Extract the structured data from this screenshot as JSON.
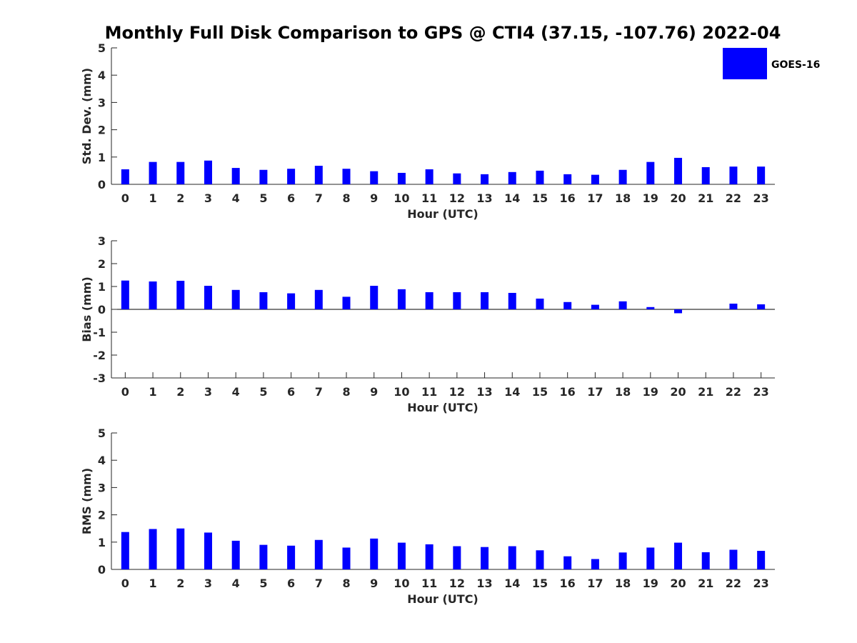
{
  "title": "Monthly Full Disk Comparison to GPS @ CTI4 (37.15, -107.76) 2022-04",
  "colors": {
    "series": "#0000ff",
    "axis": "#262626"
  },
  "legend": {
    "label": "GOES-16",
    "placement": "top-right"
  },
  "chart_data": [
    {
      "type": "bar",
      "panel": "std",
      "xlabel": "Hour (UTC)",
      "ylabel": "Std. Dev. (mm)",
      "ylim": [
        0,
        5
      ],
      "yticks": [
        0,
        1,
        2,
        3,
        4,
        5
      ],
      "categories": [
        "0",
        "1",
        "2",
        "3",
        "4",
        "5",
        "6",
        "7",
        "8",
        "9",
        "10",
        "11",
        "12",
        "13",
        "14",
        "15",
        "16",
        "17",
        "18",
        "19",
        "20",
        "21",
        "22",
        "23"
      ],
      "series": [
        {
          "name": "GOES-16",
          "values": [
            0.55,
            0.82,
            0.82,
            0.87,
            0.6,
            0.53,
            0.57,
            0.68,
            0.57,
            0.48,
            0.42,
            0.55,
            0.4,
            0.37,
            0.45,
            0.5,
            0.37,
            0.35,
            0.53,
            0.82,
            0.97,
            0.63,
            0.65,
            0.65
          ]
        }
      ]
    },
    {
      "type": "bar",
      "panel": "bias",
      "xlabel": "Hour (UTC)",
      "ylabel": "Bias (mm)",
      "ylim": [
        -3,
        3
      ],
      "yticks": [
        -3,
        -2,
        -1,
        0,
        1,
        2,
        3
      ],
      "categories": [
        "0",
        "1",
        "2",
        "3",
        "4",
        "5",
        "6",
        "7",
        "8",
        "9",
        "10",
        "11",
        "12",
        "13",
        "14",
        "15",
        "16",
        "17",
        "18",
        "19",
        "20",
        "21",
        "22",
        "23"
      ],
      "series": [
        {
          "name": "GOES-16",
          "values": [
            1.26,
            1.22,
            1.25,
            1.03,
            0.85,
            0.75,
            0.7,
            0.85,
            0.55,
            1.03,
            0.88,
            0.75,
            0.75,
            0.75,
            0.72,
            0.47,
            0.32,
            0.2,
            0.35,
            0.1,
            -0.17,
            0.0,
            0.25,
            0.22
          ]
        }
      ]
    },
    {
      "type": "bar",
      "panel": "rms",
      "xlabel": "Hour (UTC)",
      "ylabel": "RMS (mm)",
      "ylim": [
        0,
        5
      ],
      "yticks": [
        0,
        1,
        2,
        3,
        4,
        5
      ],
      "categories": [
        "0",
        "1",
        "2",
        "3",
        "4",
        "5",
        "6",
        "7",
        "8",
        "9",
        "10",
        "11",
        "12",
        "13",
        "14",
        "15",
        "16",
        "17",
        "18",
        "19",
        "20",
        "21",
        "22",
        "23"
      ],
      "series": [
        {
          "name": "GOES-16",
          "values": [
            1.37,
            1.48,
            1.5,
            1.35,
            1.05,
            0.9,
            0.87,
            1.08,
            0.8,
            1.13,
            0.98,
            0.92,
            0.85,
            0.82,
            0.85,
            0.7,
            0.48,
            0.38,
            0.62,
            0.8,
            0.98,
            0.63,
            0.72,
            0.68
          ]
        }
      ]
    }
  ]
}
